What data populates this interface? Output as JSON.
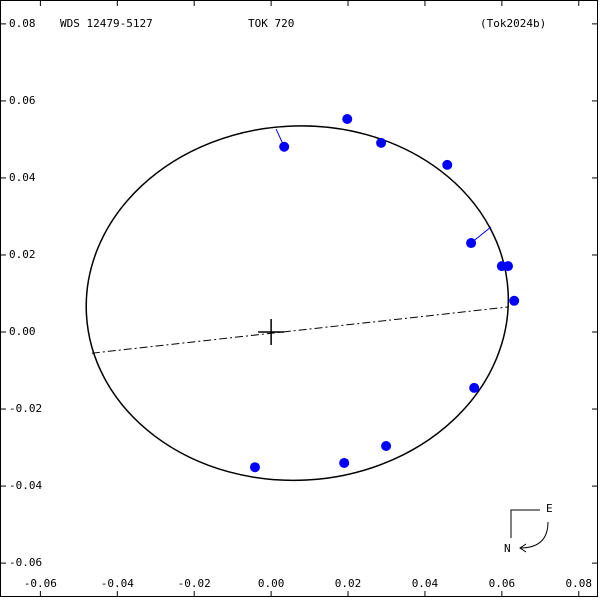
{
  "chart_data": {
    "type": "orbit",
    "title": "WDS 12479-5127",
    "subtitle": "TOK 720",
    "reference": "(Tok2024b)",
    "xlim": [
      -0.0705,
      0.085
    ],
    "ylim": [
      -0.0688,
      0.0862
    ],
    "xticks": [
      -0.06,
      -0.04,
      -0.02,
      {
        "value": 0,
        "label": "0.00"
      },
      0.02,
      0.04,
      0.06,
      0.08
    ],
    "yticks": [
      -0.06,
      -0.04,
      -0.02,
      {
        "value": 0,
        "label": "0.00"
      },
      0.02,
      0.04,
      0.06,
      0.08
    ],
    "series": [
      {
        "name": "observations",
        "color": "#0000ff",
        "x": [
          0.0198,
          0.0034,
          0.0286,
          0.0458,
          0.052,
          0.06,
          0.0616,
          0.0632,
          0.0528,
          0.0299,
          0.019,
          -0.0042
        ],
        "values": [
          0.0553,
          0.0481,
          0.0491,
          0.0434,
          0.0231,
          0.0171,
          0.0171,
          0.0081,
          -0.0145,
          -0.0296,
          -0.034,
          -0.0351
        ]
      }
    ],
    "residual_x": [
      null,
      0.0013,
      null,
      null,
      0.0572,
      null,
      null,
      null,
      null,
      null,
      null,
      null
    ],
    "residual_y": [
      null,
      0.0527,
      null,
      null,
      0.0273,
      null,
      null,
      null,
      null,
      null,
      null,
      null
    ],
    "orbit": {
      "cx": 0.0068,
      "cy": 0.0075,
      "rx": 0.0549,
      "ry": 0.046,
      "angle": -3
    },
    "node_line": {
      "x": [
        -0.0466,
        0.0616
      ],
      "y": [
        -0.0055,
        0.0065
      ]
    },
    "compass": {
      "east": "E",
      "north": "N"
    }
  }
}
